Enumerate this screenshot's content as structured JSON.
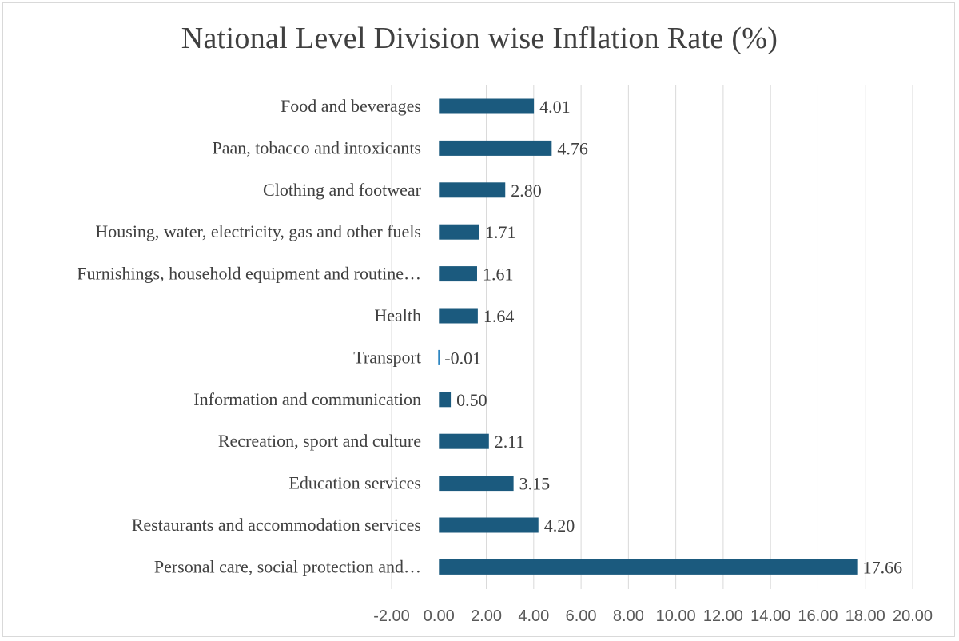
{
  "chart_data": {
    "type": "bar",
    "orientation": "horizontal",
    "title": "National Level Division wise Inflation Rate (%)",
    "xlabel": "",
    "ylabel": "",
    "categories": [
      "Food and beverages",
      "Paan, tobacco and intoxicants",
      "Clothing and footwear",
      "Housing, water, electricity, gas and other fuels",
      "Furnishings, household equipment and routine…",
      "Health",
      "Transport",
      "Information and communication",
      "Recreation, sport and culture",
      "Education services",
      "Restaurants and accommodation services",
      "Personal care, social protection and…"
    ],
    "values": [
      4.01,
      4.76,
      2.8,
      1.71,
      1.61,
      1.64,
      -0.01,
      0.5,
      2.11,
      3.15,
      4.2,
      17.66
    ],
    "value_labels": [
      "4.01",
      "4.76",
      "2.80",
      "1.71",
      "1.61",
      "1.64",
      "-0.01",
      "0.50",
      "2.11",
      "3.15",
      "4.20",
      "17.66"
    ],
    "xlim": [
      -2,
      20
    ],
    "xticks": [
      -2,
      0,
      2,
      4,
      6,
      8,
      10,
      12,
      14,
      16,
      18,
      20
    ],
    "xtick_labels": [
      "-2.00",
      "0.00",
      "2.00",
      "4.00",
      "6.00",
      "8.00",
      "10.00",
      "12.00",
      "14.00",
      "16.00",
      "18.00",
      "20.00"
    ],
    "grid": "vertical",
    "legend": "none",
    "bar_color": "#1b5a7e"
  }
}
